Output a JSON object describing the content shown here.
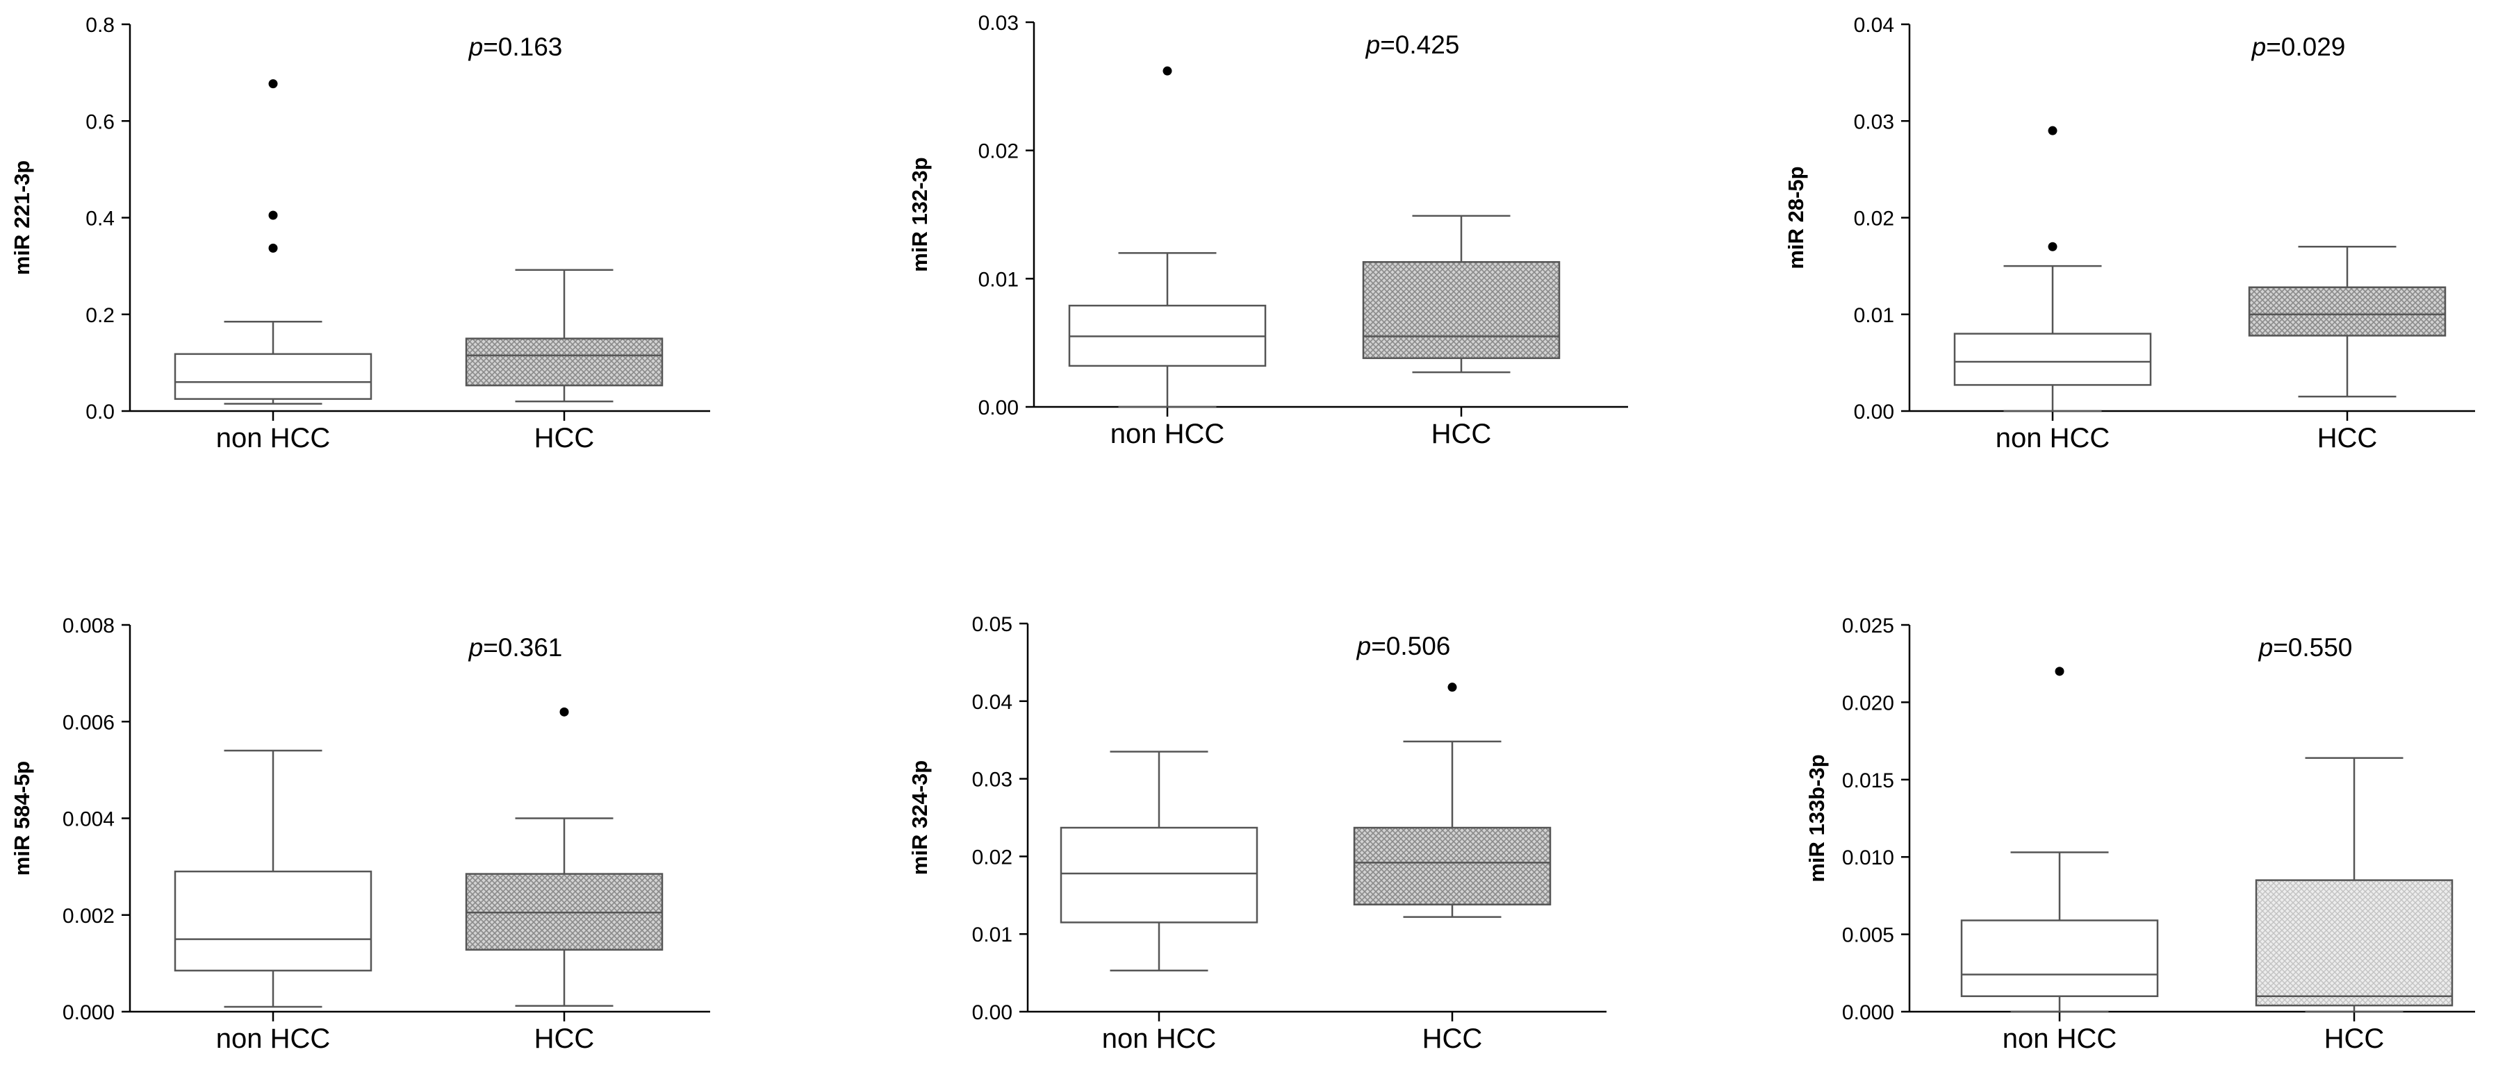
{
  "colors": {
    "axis": "#000000",
    "box_outline": "#555555",
    "whisker": "#555555",
    "outlier": "#000000",
    "hatch_dark": "#8a8a8a",
    "hatch_light": "#c8c8c8",
    "background": "#ffffff"
  },
  "chart_data": [
    {
      "type": "box",
      "ylabel": "miR 221-3p",
      "ylim": [
        0,
        0.8
      ],
      "yticks": [
        "0.0",
        "0.2",
        "0.4",
        "0.6",
        "0.8"
      ],
      "categories": [
        "non HCC",
        "HCC"
      ],
      "annotation": {
        "prefix": "p",
        "text": "=0.163"
      },
      "boxes": [
        {
          "category": "non HCC",
          "fill": "plain",
          "whisker_low": 0.015,
          "q1": 0.025,
          "median": 0.06,
          "q3": 0.118,
          "whisker_high": 0.185,
          "outliers": [
            0.677,
            0.405,
            0.337
          ]
        },
        {
          "category": "HCC",
          "fill": "hatch",
          "whisker_low": 0.02,
          "q1": 0.053,
          "median": 0.115,
          "q3": 0.15,
          "whisker_high": 0.292,
          "outliers": []
        }
      ]
    },
    {
      "type": "box",
      "ylabel": "miR 132-3p",
      "ylim": [
        0,
        0.03
      ],
      "yticks": [
        "0.00",
        "0.01",
        "0.02",
        "0.03"
      ],
      "categories": [
        "non HCC",
        "HCC"
      ],
      "annotation": {
        "prefix": "p",
        "text": "=0.425"
      },
      "boxes": [
        {
          "category": "non HCC",
          "fill": "plain",
          "whisker_low": 0.0,
          "q1": 0.0032,
          "median": 0.0055,
          "q3": 0.0079,
          "whisker_high": 0.012,
          "outliers": [
            0.0262
          ]
        },
        {
          "category": "HCC",
          "fill": "hatch",
          "whisker_low": 0.0027,
          "q1": 0.0038,
          "median": 0.0055,
          "q3": 0.0113,
          "whisker_high": 0.0149,
          "outliers": []
        }
      ]
    },
    {
      "type": "box",
      "ylabel": "miR 28-5p",
      "ylim": [
        0,
        0.04
      ],
      "yticks": [
        "0.00",
        "0.01",
        "0.02",
        "0.03",
        "0.04"
      ],
      "categories": [
        "non HCC",
        "HCC"
      ],
      "annotation": {
        "prefix": "p",
        "text": "=0.029"
      },
      "boxes": [
        {
          "category": "non HCC",
          "fill": "plain",
          "whisker_low": 0.0,
          "q1": 0.0027,
          "median": 0.0051,
          "q3": 0.008,
          "whisker_high": 0.015,
          "outliers": [
            0.029,
            0.017
          ]
        },
        {
          "category": "HCC",
          "fill": "hatch",
          "whisker_low": 0.0015,
          "q1": 0.0078,
          "median": 0.01,
          "q3": 0.0128,
          "whisker_high": 0.017,
          "outliers": []
        }
      ]
    },
    {
      "type": "box",
      "ylabel": "miR 584-5p",
      "ylim": [
        0,
        0.008
      ],
      "yticks": [
        "0.000",
        "0.002",
        "0.004",
        "0.006",
        "0.008"
      ],
      "categories": [
        "non HCC",
        "HCC"
      ],
      "annotation": {
        "prefix": "p",
        "text": "=0.361"
      },
      "boxes": [
        {
          "category": "non HCC",
          "fill": "plain",
          "whisker_low": 0.0001,
          "q1": 0.00085,
          "median": 0.0015,
          "q3": 0.0029,
          "whisker_high": 0.0054,
          "outliers": []
        },
        {
          "category": "HCC",
          "fill": "hatch",
          "whisker_low": 0.00012,
          "q1": 0.00128,
          "median": 0.00205,
          "q3": 0.00285,
          "whisker_high": 0.004,
          "outliers": [
            0.0062
          ]
        }
      ]
    },
    {
      "type": "box",
      "ylabel": "miR 324-3p",
      "ylim": [
        0,
        0.05
      ],
      "yticks": [
        "0.00",
        "0.01",
        "0.02",
        "0.03",
        "0.04",
        "0.05"
      ],
      "categories": [
        "non HCC",
        "HCC"
      ],
      "annotation": {
        "prefix": "p",
        "text": "=0.506"
      },
      "boxes": [
        {
          "category": "non HCC",
          "fill": "plain",
          "whisker_low": 0.0053,
          "q1": 0.0115,
          "median": 0.0178,
          "q3": 0.0237,
          "whisker_high": 0.0335,
          "outliers": []
        },
        {
          "category": "HCC",
          "fill": "hatch",
          "whisker_low": 0.0122,
          "q1": 0.0138,
          "median": 0.0192,
          "q3": 0.0237,
          "whisker_high": 0.0348,
          "outliers": [
            0.0418
          ]
        }
      ]
    },
    {
      "type": "box",
      "ylabel": "miR 133b-3p",
      "ylim": [
        0,
        0.025
      ],
      "yticks": [
        "0.000",
        "0.005",
        "0.010",
        "0.015",
        "0.020",
        "0.025"
      ],
      "categories": [
        "non HCC",
        "HCC"
      ],
      "annotation": {
        "prefix": "p",
        "text": "=0.550"
      },
      "boxes": [
        {
          "category": "non HCC",
          "fill": "plain",
          "whisker_low": 0.0,
          "q1": 0.001,
          "median": 0.0024,
          "q3": 0.0059,
          "whisker_high": 0.0103,
          "outliers": [
            0.022
          ]
        },
        {
          "category": "HCC",
          "fill": "hatch_light",
          "whisker_low": 0.0,
          "q1": 0.0004,
          "median": 0.001,
          "q3": 0.0085,
          "whisker_high": 0.0164,
          "outliers": []
        }
      ]
    }
  ]
}
